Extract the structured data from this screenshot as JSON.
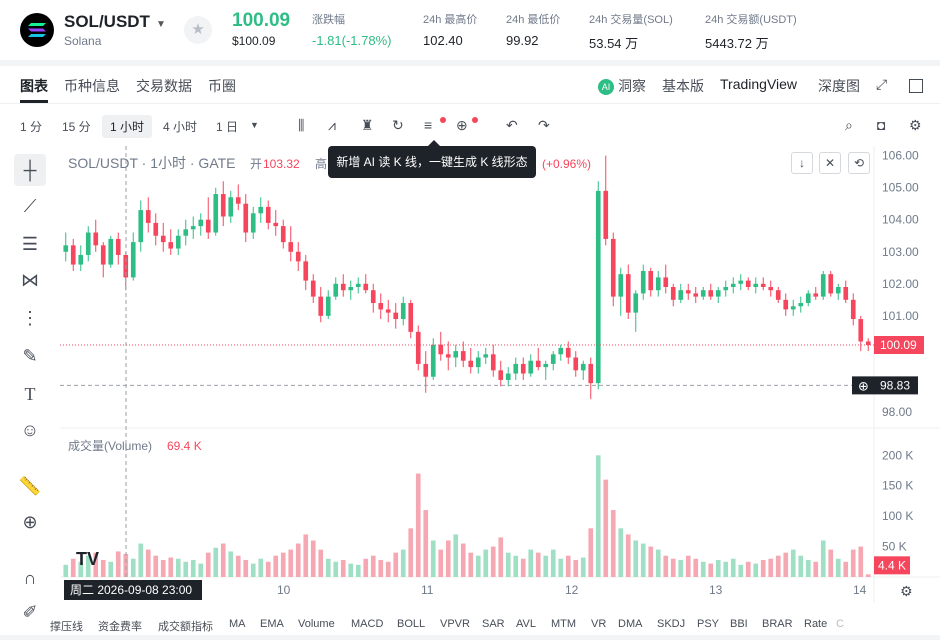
{
  "header": {
    "symbol": "SOL/USDT",
    "name": "Solana",
    "price": "100.09",
    "price_usd": "$100.09",
    "change_label": "涨跌幅",
    "change_value": "-1.81(-1.78%)",
    "high_label": "24h 最高价",
    "high_value": "102.40",
    "low_label": "24h 最低价",
    "low_value": "99.92",
    "vol_sol_label": "24h 交易量(SOL)",
    "vol_sol_value": "53.54 万",
    "vol_usdt_label": "24h 交易额(USDT)",
    "vol_usdt_value": "5443.72 万"
  },
  "tabs": [
    "图表",
    "币种信息",
    "交易数据",
    "币圈"
  ],
  "right_tabs": {
    "dongcha": "洞察",
    "basic": "基本版",
    "tv": "TradingView",
    "depth": "深度图"
  },
  "intervals": [
    "1 分",
    "15 分",
    "1 小时",
    "4 小时",
    "1 日"
  ],
  "tooltip": "新增 AI 读 K 线，一键生成 K 线形态",
  "legend": {
    "title": "SOL/USDT · 1小时 · GATE",
    "open_label": "开",
    "open_value": "103.32",
    "high_partial": "高",
    "change_partial": "(+0.96%)"
  },
  "volume_legend": {
    "label": "成交量(Volume)",
    "value": "69.4 K"
  },
  "crosshair_time": "周二 2026-09-08   23:00",
  "price_axis_labels": [
    "106.00",
    "105.00",
    "104.00",
    "103.00",
    "102.00",
    "101.00",
    "98.00"
  ],
  "current_price_tag": "100.09",
  "cursor_price_tag": "98.83",
  "volume_axis_labels": [
    "200 K",
    "150 K",
    "100 K",
    "50 K"
  ],
  "current_volume_tag": "4.4 K",
  "time_axis_labels": [
    "10",
    "11",
    "12",
    "13",
    "14"
  ],
  "indicators": [
    "撑压线",
    "资金费率",
    "成交额指标",
    "MA",
    "EMA",
    "Volume",
    "MACD",
    "BOLL",
    "VPVR",
    "SAR",
    "AVL",
    "MTM",
    "VR",
    "DMA",
    "SKDJ",
    "PSY",
    "BBI",
    "BRAR",
    "Rate",
    "C"
  ],
  "colors": {
    "up": "#2ebd85",
    "down": "#f6465d",
    "accent": "#1e2329"
  },
  "chart_data": {
    "type": "candlestick",
    "instrument": "SOL/USDT",
    "interval": "1小时",
    "exchange": "GATE",
    "ylim": [
      97.5,
      106.3
    ],
    "volume_ylim": [
      0,
      212
    ],
    "x_ticks": [
      "10",
      "11",
      "12",
      "13",
      "14"
    ],
    "candles_ohlc": [
      [
        103.0,
        103.6,
        102.7,
        103.2
      ],
      [
        103.2,
        103.4,
        102.4,
        102.6
      ],
      [
        102.6,
        103.2,
        102.4,
        102.9
      ],
      [
        102.9,
        103.8,
        102.7,
        103.6
      ],
      [
        103.6,
        104.0,
        103.0,
        103.2
      ],
      [
        103.2,
        103.3,
        102.2,
        102.6
      ],
      [
        102.6,
        103.5,
        102.5,
        103.4
      ],
      [
        103.4,
        103.6,
        102.6,
        102.9
      ],
      [
        102.9,
        103.0,
        101.8,
        102.2
      ],
      [
        102.2,
        103.6,
        102.1,
        103.3
      ],
      [
        103.3,
        104.6,
        103.0,
        104.3
      ],
      [
        104.3,
        104.7,
        103.6,
        103.9
      ],
      [
        103.9,
        104.2,
        103.2,
        103.5
      ],
      [
        103.5,
        103.9,
        103.0,
        103.3
      ],
      [
        103.3,
        103.7,
        102.9,
        103.1
      ],
      [
        103.1,
        103.7,
        102.9,
        103.5
      ],
      [
        103.5,
        104.0,
        103.2,
        103.7
      ],
      [
        103.7,
        104.1,
        103.4,
        103.8
      ],
      [
        103.8,
        104.2,
        103.5,
        104.0
      ],
      [
        104.0,
        104.7,
        103.4,
        103.6
      ],
      [
        103.6,
        105.0,
        103.5,
        104.8
      ],
      [
        104.8,
        105.2,
        103.8,
        104.1
      ],
      [
        104.1,
        104.9,
        103.9,
        104.7
      ],
      [
        104.7,
        105.1,
        104.3,
        104.5
      ],
      [
        104.5,
        104.8,
        103.3,
        103.6
      ],
      [
        103.6,
        104.4,
        103.4,
        104.2
      ],
      [
        104.2,
        104.7,
        103.9,
        104.4
      ],
      [
        104.4,
        104.6,
        103.7,
        103.9
      ],
      [
        103.9,
        104.3,
        103.5,
        103.8
      ],
      [
        103.8,
        104.0,
        103.1,
        103.3
      ],
      [
        103.3,
        103.8,
        102.7,
        103.0
      ],
      [
        103.0,
        103.3,
        102.4,
        102.7
      ],
      [
        102.7,
        102.9,
        101.8,
        102.1
      ],
      [
        102.1,
        102.3,
        101.4,
        101.6
      ],
      [
        101.6,
        101.9,
        100.8,
        101.0
      ],
      [
        101.0,
        101.8,
        100.9,
        101.6
      ],
      [
        101.6,
        102.2,
        101.5,
        102.0
      ],
      [
        102.0,
        102.3,
        101.6,
        101.8
      ],
      [
        101.8,
        102.1,
        101.5,
        101.9
      ],
      [
        101.9,
        102.2,
        101.7,
        102.0
      ],
      [
        102.0,
        102.3,
        101.7,
        101.8
      ],
      [
        101.8,
        102.0,
        101.1,
        101.4
      ],
      [
        101.4,
        101.7,
        100.9,
        101.2
      ],
      [
        101.2,
        101.5,
        100.8,
        101.1
      ],
      [
        101.1,
        101.4,
        100.6,
        100.9
      ],
      [
        100.9,
        101.6,
        100.7,
        101.4
      ],
      [
        101.4,
        101.5,
        100.3,
        100.5
      ],
      [
        100.5,
        100.7,
        99.3,
        99.5
      ],
      [
        99.5,
        99.9,
        98.6,
        99.1
      ],
      [
        99.1,
        100.3,
        99.0,
        100.1
      ],
      [
        100.1,
        100.5,
        99.6,
        99.8
      ],
      [
        99.8,
        100.2,
        99.3,
        99.7
      ],
      [
        99.7,
        100.1,
        99.4,
        99.9
      ],
      [
        99.9,
        100.2,
        99.4,
        99.6
      ],
      [
        99.6,
        100.0,
        99.2,
        99.4
      ],
      [
        99.4,
        99.9,
        99.2,
        99.7
      ],
      [
        99.7,
        100.0,
        99.5,
        99.8
      ],
      [
        99.8,
        100.1,
        99.1,
        99.3
      ],
      [
        99.3,
        99.6,
        98.8,
        99.0
      ],
      [
        99.0,
        99.4,
        98.8,
        99.2
      ],
      [
        99.2,
        99.7,
        99.0,
        99.5
      ],
      [
        99.5,
        99.7,
        99.0,
        99.2
      ],
      [
        99.2,
        99.8,
        99.1,
        99.6
      ],
      [
        99.6,
        100.0,
        99.3,
        99.4
      ],
      [
        99.4,
        99.6,
        99.0,
        99.5
      ],
      [
        99.5,
        99.9,
        99.3,
        99.8
      ],
      [
        99.8,
        100.1,
        99.6,
        100.0
      ],
      [
        100.0,
        100.2,
        99.5,
        99.7
      ],
      [
        99.7,
        99.9,
        99.1,
        99.3
      ],
      [
        99.3,
        99.6,
        99.0,
        99.5
      ],
      [
        99.5,
        99.7,
        98.4,
        98.9
      ],
      [
        98.9,
        105.2,
        98.7,
        104.9
      ],
      [
        104.9,
        106.0,
        103.2,
        103.4
      ],
      [
        103.4,
        103.6,
        101.3,
        101.6
      ],
      [
        101.6,
        102.5,
        101.0,
        102.3
      ],
      [
        102.3,
        102.6,
        100.9,
        101.1
      ],
      [
        101.1,
        101.8,
        100.5,
        101.7
      ],
      [
        101.7,
        102.6,
        101.5,
        102.4
      ],
      [
        102.4,
        102.5,
        101.6,
        101.8
      ],
      [
        101.8,
        102.4,
        101.6,
        102.2
      ],
      [
        102.2,
        102.6,
        101.7,
        101.9
      ],
      [
        101.9,
        102.0,
        101.3,
        101.5
      ],
      [
        101.5,
        102.0,
        101.4,
        101.8
      ],
      [
        101.8,
        102.0,
        101.5,
        101.7
      ],
      [
        101.7,
        101.9,
        101.4,
        101.6
      ],
      [
        101.6,
        101.9,
        101.5,
        101.8
      ],
      [
        101.8,
        102.0,
        101.5,
        101.6
      ],
      [
        101.6,
        101.9,
        101.4,
        101.8
      ],
      [
        101.8,
        102.1,
        101.6,
        101.9
      ],
      [
        101.9,
        102.2,
        101.7,
        102.0
      ],
      [
        102.0,
        102.3,
        101.8,
        102.1
      ],
      [
        102.1,
        102.2,
        101.8,
        101.9
      ],
      [
        101.9,
        102.2,
        101.7,
        102.0
      ],
      [
        102.0,
        102.2,
        101.8,
        101.9
      ],
      [
        101.9,
        102.1,
        101.6,
        101.8
      ],
      [
        101.8,
        101.9,
        101.4,
        101.5
      ],
      [
        101.5,
        101.7,
        101.0,
        101.2
      ],
      [
        101.2,
        101.5,
        101.0,
        101.3
      ],
      [
        101.3,
        101.6,
        101.1,
        101.4
      ],
      [
        101.4,
        101.8,
        101.3,
        101.7
      ],
      [
        101.7,
        101.9,
        101.5,
        101.6
      ],
      [
        101.6,
        102.4,
        101.5,
        102.3
      ],
      [
        102.3,
        102.4,
        101.6,
        101.7
      ],
      [
        101.7,
        102.0,
        101.5,
        101.9
      ],
      [
        101.9,
        102.1,
        101.4,
        101.5
      ],
      [
        101.5,
        101.7,
        100.7,
        100.9
      ],
      [
        100.9,
        101.0,
        99.9,
        100.2
      ],
      [
        100.2,
        100.3,
        99.9,
        100.09
      ]
    ],
    "volume_k": [
      20,
      30,
      25,
      35,
      40,
      28,
      25,
      42,
      38,
      30,
      55,
      45,
      35,
      28,
      32,
      30,
      25,
      28,
      22,
      40,
      48,
      55,
      42,
      35,
      28,
      22,
      30,
      25,
      35,
      40,
      45,
      55,
      70,
      60,
      45,
      30,
      25,
      28,
      22,
      20,
      30,
      35,
      28,
      25,
      40,
      45,
      80,
      170,
      110,
      60,
      45,
      60,
      70,
      55,
      40,
      35,
      45,
      50,
      65,
      40,
      35,
      30,
      45,
      40,
      35,
      45,
      30,
      35,
      28,
      32,
      80,
      200,
      160,
      110,
      80,
      70,
      60,
      55,
      50,
      45,
      35,
      30,
      28,
      35,
      30,
      25,
      22,
      28,
      25,
      30,
      20,
      25,
      22,
      28,
      30,
      35,
      40,
      45,
      35,
      28,
      25,
      60,
      45,
      30,
      25,
      45,
      50,
      4.4
    ],
    "current_price": 100.09,
    "crosshair_price": 98.83
  }
}
